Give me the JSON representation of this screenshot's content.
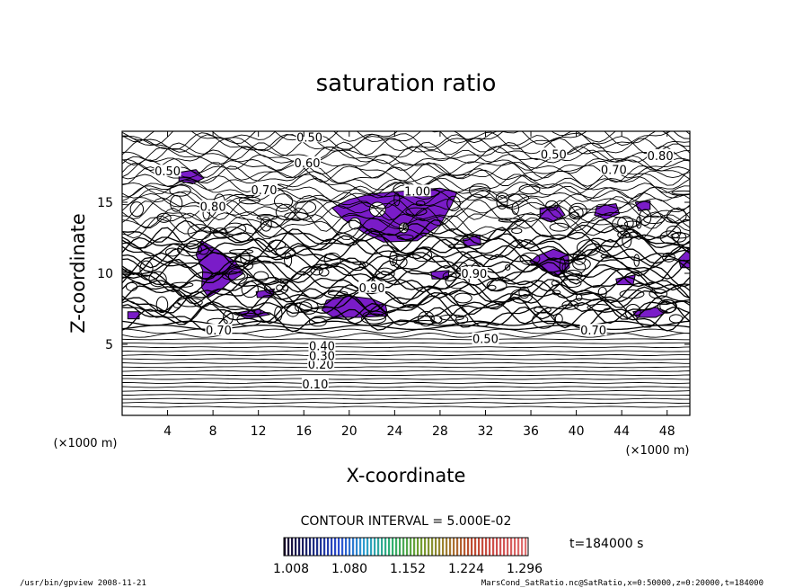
{
  "chart_data": {
    "type": "contour",
    "title": "saturation ratio",
    "xlabel": "X-coordinate",
    "ylabel": "Z-coordinate",
    "x_unit": "(×1000 m)",
    "y_unit": "(×1000 m)",
    "xlim": [
      0,
      50
    ],
    "ylim": [
      0,
      20
    ],
    "x_ticks": [
      4,
      8,
      12,
      16,
      20,
      24,
      28,
      32,
      36,
      40,
      44,
      48
    ],
    "y_ticks": [
      5,
      10,
      15
    ],
    "contour_interval_text": "CONTOUR INTERVAL = 5.000E-02",
    "contour_labels": [
      {
        "text": "0.10",
        "x": 17,
        "z": 2.2
      },
      {
        "text": "0.20",
        "x": 17.5,
        "z": 3.6
      },
      {
        "text": "0.30",
        "x": 17.6,
        "z": 4.2
      },
      {
        "text": "0.40",
        "x": 17.6,
        "z": 4.9
      },
      {
        "text": "0.70",
        "x": 8.5,
        "z": 6.0
      },
      {
        "text": "0.50",
        "x": 32,
        "z": 5.4
      },
      {
        "text": "0.70",
        "x": 41.5,
        "z": 6.0
      },
      {
        "text": "0.90",
        "x": 22,
        "z": 9.0
      },
      {
        "text": "0.90",
        "x": 31,
        "z": 10.0
      },
      {
        "text": "0.70",
        "x": 12.5,
        "z": 15.9
      },
      {
        "text": "0.80",
        "x": 8,
        "z": 14.7
      },
      {
        "text": "0.50",
        "x": 16.5,
        "z": 19.6
      },
      {
        "text": "0.60",
        "x": 16.3,
        "z": 17.8
      },
      {
        "text": "0.50",
        "x": 4,
        "z": 17.2
      },
      {
        "text": "0.50",
        "x": 38,
        "z": 18.4
      },
      {
        "text": "0.70",
        "x": 43.3,
        "z": 17.3
      },
      {
        "text": "0.80",
        "x": 47.4,
        "z": 18.3
      },
      {
        "text": "1.00",
        "x": 26,
        "z": 15.8
      }
    ],
    "colorbar": {
      "tick_labels": [
        "1.008",
        "1.080",
        "1.152",
        "1.224",
        "1.296"
      ],
      "colors": [
        "#1a0a2e",
        "#1b2a7a",
        "#2b4bd0",
        "#2fa0d0",
        "#2fb070",
        "#6fa030",
        "#a08030",
        "#c04a30",
        "#d05050",
        "#e07070"
      ]
    },
    "fill_color": "#7a1cc8",
    "time_text": "t=184000 s"
  },
  "footer": {
    "left": "/usr/bin/gpview  2008-11-21",
    "right": "MarsCond_SatRatio.nc@SatRatio,x=0:50000,z=0:20000,t=184000"
  }
}
